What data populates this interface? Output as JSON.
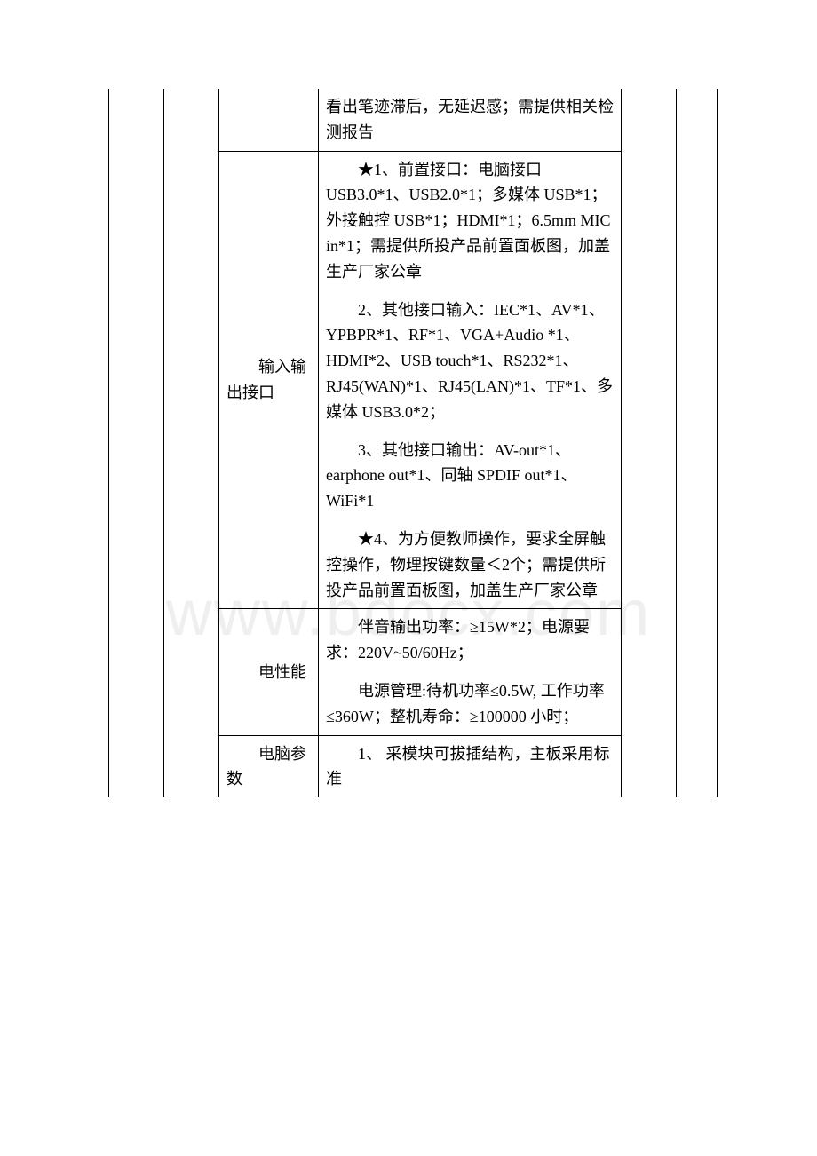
{
  "watermark": "www.bdocx.com",
  "rows": [
    {
      "label": "",
      "content": [
        "看出笔迹滞后，无延迟感；需提供相关检测报告"
      ]
    },
    {
      "label": "输入输出接口",
      "content": [
        "★1、前置接口：电脑接口 USB3.0*1、USB2.0*1；多媒体 USB*1；外接触控 USB*1；HDMI*1；6.5mm MIC in*1；需提供所投产品前置面板图，加盖生产厂家公章",
        "2、其他接口输入：IEC*1、AV*1、YPBPR*1、RF*1、VGA+Audio *1、HDMI*2、USB touch*1、RS232*1、RJ45(WAN)*1、RJ45(LAN)*1、TF*1、多媒体 USB3.0*2；",
        "3、其他接口输出：AV-out*1、earphone out*1、同轴 SPDIF out*1、WiFi*1",
        "★4、为方便教师操作，要求全屏触控操作，物理按键数量＜2个；需提供所投产品前置面板图，加盖生产厂家公章"
      ]
    },
    {
      "label": "电性能",
      "content": [
        "伴音输出功率：≥15W*2；电源要求：220V~50/60Hz；",
        "电源管理:待机功率≤0.5W, 工作功率≤360W；整机寿命：≥100000 小时；"
      ]
    },
    {
      "label": "电脑参数",
      "content": [
        "1、 采模块可拔插结构，主板采用标准"
      ]
    }
  ]
}
